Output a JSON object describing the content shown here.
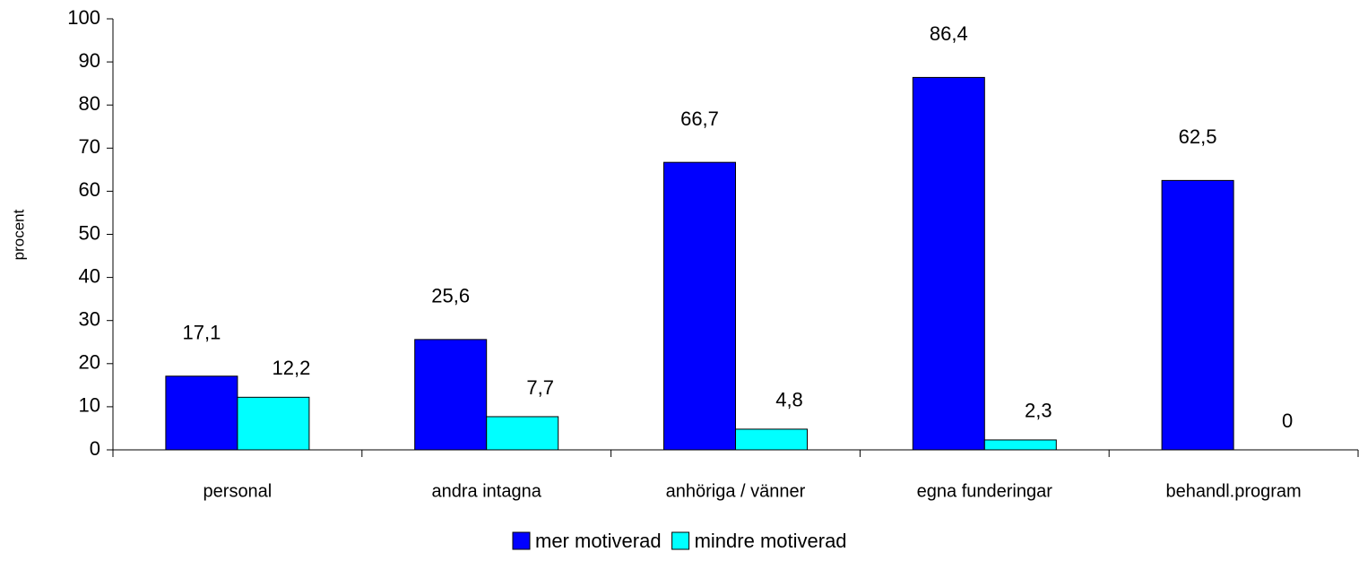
{
  "chart_data": {
    "type": "bar",
    "y_label": "procent",
    "categories": [
      "personal",
      "andra intagna",
      "anhöriga / vänner",
      "egna funderingar",
      "behandl.program"
    ],
    "series": [
      {
        "name": "mer motiverad",
        "color": "#0000ff",
        "values": [
          17.1,
          25.6,
          66.7,
          86.4,
          62.5
        ],
        "value_labels": [
          "17,1",
          "25,6",
          "66,7",
          "86,4",
          "62,5"
        ]
      },
      {
        "name": "mindre motiverad",
        "color": "#00ffff",
        "values": [
          12.2,
          7.7,
          4.8,
          2.3,
          0
        ],
        "value_labels": [
          "12,2",
          "7,7",
          "4,8",
          "2,3",
          "0"
        ]
      }
    ],
    "ylim": [
      0,
      100
    ],
    "yticks": [
      0,
      10,
      20,
      30,
      40,
      50,
      60,
      70,
      80,
      90,
      100
    ],
    "grid": false,
    "legend": "bottom"
  }
}
